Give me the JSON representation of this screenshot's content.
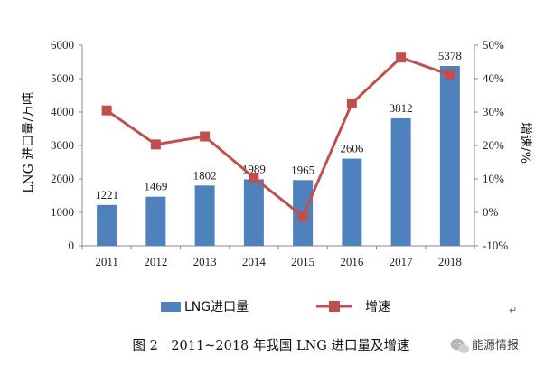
{
  "chart_data": {
    "type": "bar",
    "categories": [
      "2011",
      "2012",
      "2013",
      "2014",
      "2015",
      "2016",
      "2017",
      "2018"
    ],
    "series": [
      {
        "name": "LNG进口量",
        "type": "bar",
        "axis": "left",
        "color": "#4F81BD",
        "values": [
          1221,
          1469,
          1802,
          1989,
          1965,
          2606,
          3812,
          5378
        ],
        "data_labels": [
          "1221",
          "1469",
          "1802",
          "1989",
          "1965",
          "2606",
          "3812",
          "5378"
        ]
      },
      {
        "name": "增速",
        "type": "line",
        "axis": "right",
        "color": "#C0504D",
        "marker": "square",
        "values": [
          30.5,
          20.3,
          22.7,
          10.4,
          -1.2,
          32.6,
          46.3,
          41.1
        ]
      }
    ],
    "ylabel_left": "LNG 进口量/万吨",
    "ylabel_right": "增速/%",
    "ylim_left": [
      0,
      6000
    ],
    "yticks_left": [
      "0",
      "1000",
      "2000",
      "3000",
      "4000",
      "5000",
      "6000"
    ],
    "ylim_right": [
      -10,
      50
    ],
    "yticks_right": [
      "-10%",
      "0%",
      "10%",
      "20%",
      "30%",
      "40%",
      "50%"
    ],
    "grid": false,
    "legend_position": "bottom"
  },
  "caption": "图 2　2011~2018 年我国 LNG 进口量及增速",
  "watermark": "能源情报",
  "colors": {
    "bar": "#4F81BD",
    "line": "#C0504D",
    "axis": "#888888"
  },
  "icons": {
    "watermark": "wechat-icon"
  }
}
